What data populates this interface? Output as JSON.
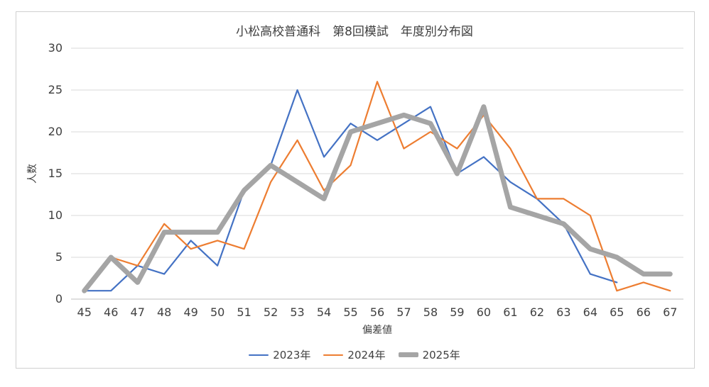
{
  "chart_data": {
    "type": "line",
    "title": "小松高校普通科　第8回模試　年度別分布図",
    "xlabel": "偏差値",
    "ylabel": "人数",
    "ylim": [
      0,
      30
    ],
    "yticks": [
      0,
      5,
      10,
      15,
      20,
      25,
      30
    ],
    "grid": true,
    "legend_position": "bottom",
    "categories": [
      "45",
      "46",
      "47",
      "48",
      "49",
      "50",
      "51",
      "52",
      "53",
      "54",
      "55",
      "56",
      "57",
      "58",
      "59",
      "60",
      "61",
      "62",
      "63",
      "64",
      "65",
      "66",
      "67"
    ],
    "series": [
      {
        "name": "2023年",
        "color": "#4472c4",
        "weight": "thin",
        "values": [
          1,
          1,
          4,
          3,
          7,
          4,
          13,
          16,
          25,
          17,
          21,
          19,
          21,
          23,
          15,
          17,
          14,
          12,
          9,
          3,
          2,
          null,
          null
        ]
      },
      {
        "name": "2024年",
        "color": "#ed7d31",
        "weight": "thin",
        "values": [
          1,
          5,
          4,
          9,
          6,
          7,
          6,
          14,
          19,
          13,
          16,
          26,
          18,
          20,
          18,
          22,
          18,
          12,
          12,
          10,
          1,
          2,
          1
        ]
      },
      {
        "name": "2025年",
        "color": "#a5a5a5",
        "weight": "thick",
        "values": [
          1,
          5,
          2,
          8,
          8,
          8,
          13,
          16,
          14,
          12,
          20,
          21,
          22,
          21,
          15,
          23,
          11,
          10,
          9,
          6,
          5,
          3,
          3
        ]
      }
    ]
  }
}
